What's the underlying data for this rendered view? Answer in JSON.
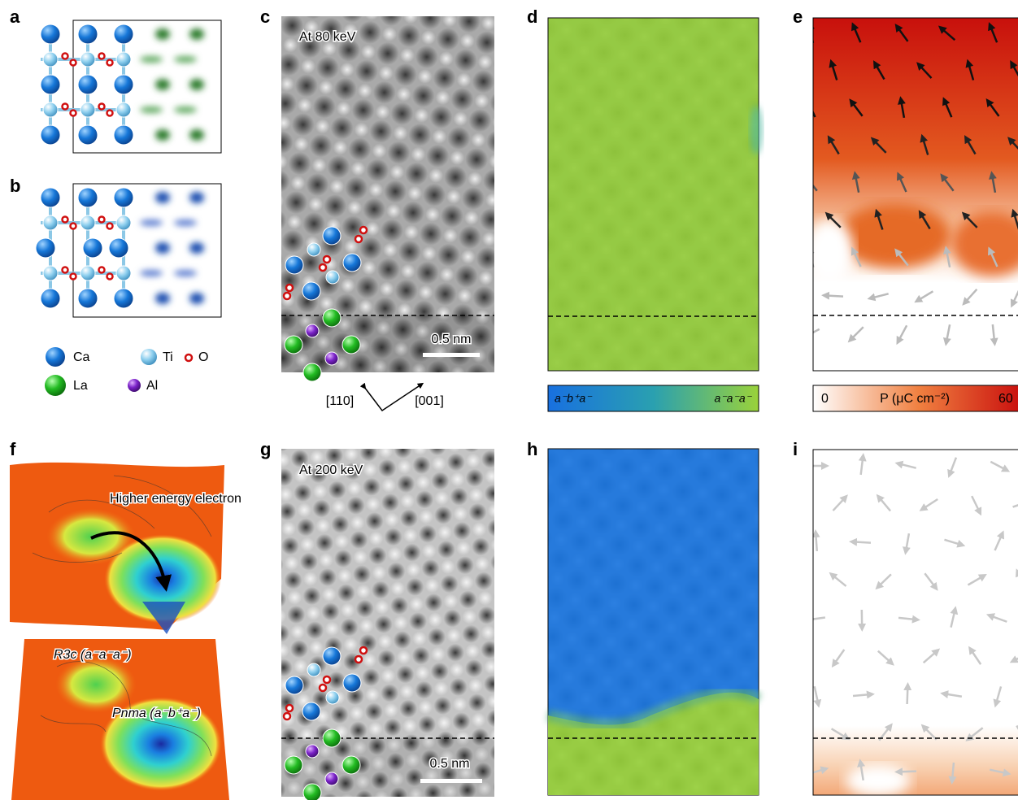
{
  "panel_labels": [
    "a",
    "b",
    "c",
    "d",
    "e",
    "f",
    "g",
    "h",
    "i"
  ],
  "legend": [
    "Ca",
    "Ti",
    "O",
    "La",
    "Al"
  ],
  "panel_c": {
    "energy": "At 80 keV",
    "scale_bar": "0.5 nm",
    "directions": [
      "[110]",
      "[001]"
    ]
  },
  "panel_d_colorbar": {
    "left": "a⁻b⁺a⁻",
    "right": "a⁻a⁻a⁻"
  },
  "panel_e_colorbar": {
    "min": 0,
    "label": "P (μC cm⁻²)",
    "max": 60
  },
  "panel_f": {
    "annotation": "Higher energy electron",
    "minimum_1": "R3c (a⁻a⁻a⁻)",
    "minimum_2": "Pnma (a⁻b⁺a⁻)"
  },
  "panel_g": {
    "energy": "At 200 keV",
    "scale_bar": "0.5 nm"
  }
}
